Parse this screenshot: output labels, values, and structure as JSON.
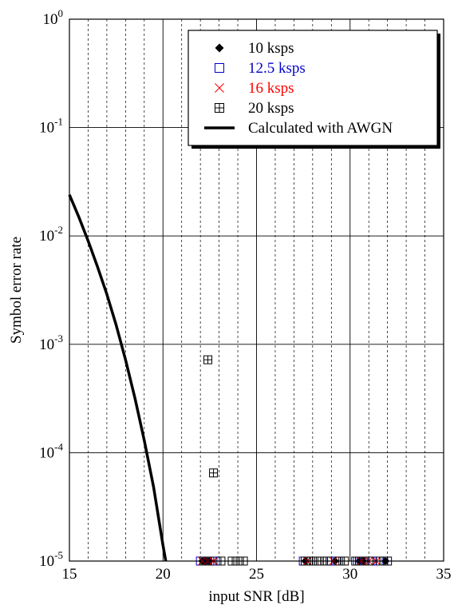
{
  "chart_data": {
    "type": "scatter",
    "title": "",
    "xlabel": "input SNR [dB]",
    "ylabel": "Symbol error rate",
    "xlim": [
      15,
      35
    ],
    "ylim": [
      1e-05,
      1
    ],
    "yscale": "log",
    "grid": {
      "major": true,
      "minor_x": true
    },
    "x_ticks": [
      {
        "value": 15,
        "label": "15"
      },
      {
        "value": 20,
        "label": "20"
      },
      {
        "value": 25,
        "label": "25"
      },
      {
        "value": 30,
        "label": "30"
      },
      {
        "value": 35,
        "label": "35"
      }
    ],
    "y_ticks": [
      {
        "value": 1,
        "base": "10",
        "exp": "0"
      },
      {
        "value": 0.1,
        "base": "10",
        "exp": "-1"
      },
      {
        "value": 0.01,
        "base": "10",
        "exp": "-2"
      },
      {
        "value": 0.001,
        "base": "10",
        "exp": "-3"
      },
      {
        "value": 0.0001,
        "base": "10",
        "exp": "-4"
      },
      {
        "value": 1e-05,
        "base": "10",
        "exp": "-5"
      }
    ],
    "legend_position": "top-right",
    "series": [
      {
        "name": "10 ksps",
        "marker": "diamond",
        "color": "#000000",
        "points": [
          [
            22.1,
            1e-05
          ],
          [
            22.3,
            1e-05
          ],
          [
            22.5,
            1e-05
          ],
          [
            27.6,
            1e-05
          ],
          [
            29.2,
            1e-05
          ],
          [
            30.5,
            1e-05
          ],
          [
            30.7,
            1e-05
          ],
          [
            31.9,
            1e-05
          ]
        ]
      },
      {
        "name": "12.5 ksps",
        "marker": "square",
        "color": "#0000cc",
        "points": [
          [
            22.0,
            1e-05
          ],
          [
            22.2,
            1e-05
          ],
          [
            22.4,
            1e-05
          ],
          [
            22.6,
            1e-05
          ],
          [
            22.8,
            1e-05
          ],
          [
            27.5,
            1e-05
          ],
          [
            27.8,
            1e-05
          ],
          [
            29.0,
            1e-05
          ],
          [
            29.3,
            1e-05
          ],
          [
            30.4,
            1e-05
          ],
          [
            30.6,
            1e-05
          ],
          [
            30.8,
            1e-05
          ],
          [
            31.2,
            1e-05
          ],
          [
            31.5,
            1e-05
          ],
          [
            31.8,
            1e-05
          ]
        ]
      },
      {
        "name": "16 ksps",
        "marker": "x",
        "color": "#ff0000",
        "points": [
          [
            22.1,
            1e-05
          ],
          [
            22.4,
            1e-05
          ],
          [
            22.7,
            1e-05
          ],
          [
            27.7,
            1e-05
          ],
          [
            29.1,
            1e-05
          ],
          [
            30.6,
            1e-05
          ],
          [
            31.0,
            1e-05
          ],
          [
            31.4,
            1e-05
          ]
        ]
      },
      {
        "name": "20 ksps",
        "marker": "boxplus",
        "color": "#000000",
        "points": [
          [
            22.4,
            0.00072
          ],
          [
            22.7,
            6.5e-05
          ],
          [
            22.2,
            1e-05
          ],
          [
            22.5,
            1e-05
          ],
          [
            23.1,
            1e-05
          ],
          [
            23.7,
            1e-05
          ],
          [
            24.0,
            1e-05
          ],
          [
            24.3,
            1e-05
          ],
          [
            27.6,
            1e-05
          ],
          [
            27.9,
            1e-05
          ],
          [
            28.2,
            1e-05
          ],
          [
            28.5,
            1e-05
          ],
          [
            28.8,
            1e-05
          ],
          [
            29.4,
            1e-05
          ],
          [
            29.7,
            1e-05
          ],
          [
            30.3,
            1e-05
          ],
          [
            30.5,
            1e-05
          ],
          [
            30.7,
            1e-05
          ],
          [
            31.0,
            1e-05
          ],
          [
            31.6,
            1e-05
          ],
          [
            32.0,
            1e-05
          ]
        ]
      },
      {
        "name": "Calculated with AWGN",
        "marker": "line",
        "color": "#000000",
        "points": [
          [
            15,
            0.024
          ],
          [
            15.5,
            0.015
          ],
          [
            16,
            0.009
          ],
          [
            16.5,
            0.0052
          ],
          [
            17,
            0.0029
          ],
          [
            17.5,
            0.0015
          ],
          [
            18,
            0.00072
          ],
          [
            18.5,
            0.00032
          ],
          [
            19,
            0.00013
          ],
          [
            19.5,
            4.8e-05
          ],
          [
            20,
            1.4e-05
          ],
          [
            20.15,
            1e-05
          ]
        ]
      }
    ]
  }
}
